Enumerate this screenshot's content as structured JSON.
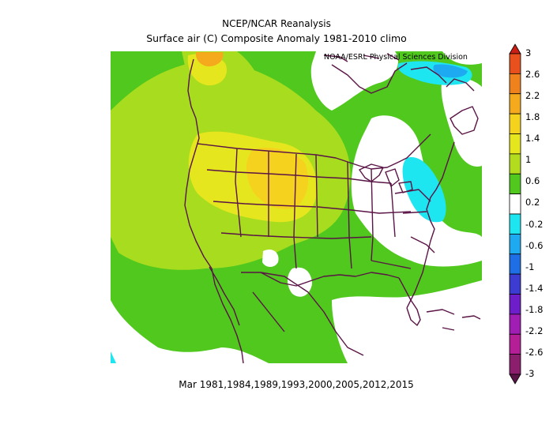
{
  "header": {
    "title": "NCEP/NCAR Reanalysis",
    "subtitle": "Surface air (C) Composite Anomaly 1981-2010 climo",
    "credit": "NOAA/ESRL Physical Sciences Division"
  },
  "footer": {
    "caption": "Mar 1981,1984,1989,1993,2000,2005,2012,2015"
  },
  "colorbar": {
    "labels": [
      "3",
      "2.6",
      "2.2",
      "1.8",
      "1.4",
      "1",
      "0.6",
      "0.2",
      "-0.2",
      "-0.6",
      "-1",
      "-1.4",
      "-1.8",
      "-2.2",
      "-2.6",
      "-3"
    ],
    "colors": [
      "#c81e14",
      "#e8501e",
      "#f0821e",
      "#f5aa1e",
      "#f5d21e",
      "#e6e61e",
      "#b4dc1e",
      "#50c81e",
      "#ffffff",
      "#1ee6f0",
      "#1eaaf0",
      "#1e6ee6",
      "#3c3cd2",
      "#6e1ec8",
      "#a01eb4",
      "#b41e96",
      "#8c1e6e",
      "#5a1446"
    ]
  }
}
